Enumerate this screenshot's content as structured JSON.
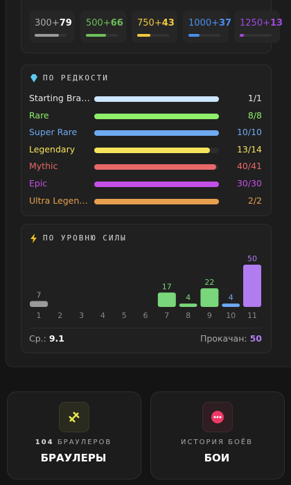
{
  "tiers": [
    {
      "tier": "300+",
      "count": 79,
      "color": "#9a9a9a"
    },
    {
      "tier": "500+",
      "count": 66,
      "color": "#6dbf5a"
    },
    {
      "tier": "750+",
      "count": 43,
      "color": "#f0c840"
    },
    {
      "tier": "1000+",
      "count": 37,
      "color": "#4a8ef0"
    },
    {
      "tier": "1250+",
      "count": 13,
      "color": "#a04ae0"
    }
  ],
  "rarity": {
    "title": "ПО РЕДКОСТИ",
    "rows": [
      {
        "name": "Starting Bra…",
        "label": "1/1",
        "owned": 1,
        "total": 1,
        "color": "#cde6ff",
        "text_color": "#e8e8e8"
      },
      {
        "name": "Rare",
        "label": "8/8",
        "owned": 8,
        "total": 8,
        "color": "#8eef6a",
        "text_color": "#8eef6a"
      },
      {
        "name": "Super Rare",
        "label": "10/10",
        "owned": 10,
        "total": 10,
        "color": "#6eaaf2",
        "text_color": "#6eaaf2"
      },
      {
        "name": "Legendary",
        "label": "13/14",
        "owned": 13,
        "total": 14,
        "color": "#f5e35c",
        "text_color": "#f5e35c"
      },
      {
        "name": "Mythic",
        "label": "40/41",
        "owned": 40,
        "total": 41,
        "color": "#e86868",
        "text_color": "#e86868"
      },
      {
        "name": "Epic",
        "label": "30/30",
        "owned": 30,
        "total": 30,
        "color": "#c450e6",
        "text_color": "#c450e6"
      },
      {
        "name": "Ultra Legen…",
        "label": "2/2",
        "owned": 2,
        "total": 2,
        "color": "#e8a04e",
        "text_color": "#e8a04e"
      }
    ]
  },
  "power": {
    "title": "ПО УРОВНЮ СИЛЫ",
    "levels": [
      1,
      2,
      3,
      4,
      5,
      6,
      7,
      8,
      9,
      10,
      11
    ],
    "counts": [
      7,
      null,
      null,
      null,
      null,
      null,
      17,
      4,
      22,
      4,
      50
    ],
    "colors": [
      "#9a9a9a",
      "#9a9a9a",
      "#9a9a9a",
      "#9a9a9a",
      "#9a9a9a",
      "#9a9a9a",
      "#7ad67a",
      "#7ad67a",
      "#7ad67a",
      "#6eaaf2",
      "#b07cf0"
    ],
    "avg_label": "Ср.:",
    "avg": 9.1,
    "maxed_label": "Прокачан:",
    "maxed": 50
  },
  "cards": [
    {
      "count": 104,
      "caption": "БРАУЛЕРОВ",
      "title": "БРАУЛЕРЫ"
    },
    {
      "caption": "ИСТОРИЯ БОЁВ",
      "title": "БОИ"
    }
  ]
}
